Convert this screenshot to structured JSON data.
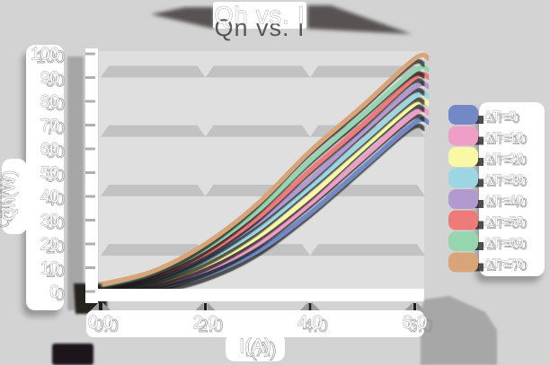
{
  "title": "Qh vs. I",
  "styles": {
    "background": "#d3d3d3",
    "plot_background": "#dfdfdf",
    "grid_band": "#c2c2c2",
    "axis_band": "#ffffff",
    "axis_shadow": "#a6a6a6",
    "corner_shadow": "#26201f",
    "text_color": "#ffffff",
    "text_outline": "#9f9f9f",
    "panel_color": "#ffffff"
  },
  "chart_data": {
    "type": "line",
    "title": "Qh vs. I",
    "xlabel": "I(A)",
    "ylabel": "Qh(W)",
    "xlim": [
      0,
      6.3
    ],
    "ylim": [
      0,
      100
    ],
    "xticks": [
      "0.0",
      "2.0",
      "4.0",
      "6.0"
    ],
    "xtick_values": [
      0,
      2,
      4,
      6
    ],
    "yticks": [
      "0",
      "10",
      "20",
      "30",
      "40",
      "50",
      "60",
      "70",
      "80",
      "90",
      "100"
    ],
    "ytick_values": [
      0,
      10,
      20,
      30,
      40,
      50,
      60,
      70,
      80,
      90,
      100
    ],
    "grid": "horizontal beveled bands",
    "horizontal_gridlines_at": [
      17.5,
      42.5,
      67.5,
      92.5
    ],
    "legend_position": "right",
    "x": [
      0,
      1,
      2,
      3,
      4,
      5,
      6
    ],
    "series": [
      {
        "name": "ΔT=0",
        "color": "#7289c5",
        "values": [
          0,
          2,
          7,
          17,
          33,
          52,
          71
        ]
      },
      {
        "name": "ΔT=10",
        "color": "#ef9ec7",
        "values": [
          0,
          2.5,
          9,
          20,
          37,
          56,
          75
        ]
      },
      {
        "name": "ΔT=20",
        "color": "#f8f8a5",
        "values": [
          0.5,
          3.5,
          11,
          23,
          40,
          60,
          79
        ]
      },
      {
        "name": "ΔT=30",
        "color": "#9cd6e2",
        "values": [
          1,
          4.5,
          13,
          26,
          44,
          63,
          82
        ]
      },
      {
        "name": "ΔT=40",
        "color": "#b29ad1",
        "values": [
          1.5,
          5.5,
          15,
          29,
          47,
          67,
          86
        ]
      },
      {
        "name": "ΔT=50",
        "color": "#ee7a79",
        "values": [
          2,
          6.5,
          16,
          31,
          51,
          70,
          90
        ]
      },
      {
        "name": "ΔT=60",
        "color": "#95d6af",
        "values": [
          2.5,
          7.5,
          18,
          34,
          55,
          74,
          93
        ]
      },
      {
        "name": "ΔT=70",
        "color": "#d9a478",
        "values": [
          3,
          8.5,
          20,
          37,
          59,
          78,
          98
        ]
      }
    ]
  }
}
